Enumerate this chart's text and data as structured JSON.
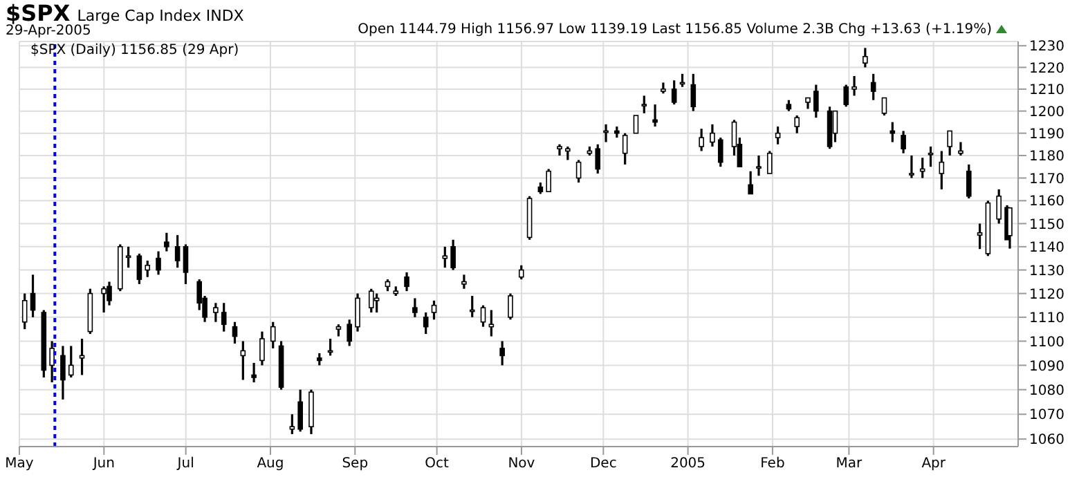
{
  "chart_data": {
    "type": "candlestick",
    "title": "$SPX",
    "subtitle": "Large Cap Index INDX",
    "annotations": [
      "29-Apr-2005",
      "Open 1144.79 High 1156.97 Low 1139.19 Last 1156.85 Volume 2.3B Chg +13.63 (+1.19%)",
      "$SPX (Daily) 1156.85 (29 Apr)"
    ],
    "color": "#000000",
    "x": [
      "2004-05-03",
      "2004-05-06",
      "2004-05-10",
      "2004-05-13",
      "2004-05-17",
      "2004-05-20",
      "2004-05-24",
      "2004-05-27",
      "2004-06-01",
      "2004-06-03",
      "2004-06-07",
      "2004-06-10",
      "2004-06-14",
      "2004-06-17",
      "2004-06-21",
      "2004-06-24",
      "2004-06-28",
      "2004-07-01",
      "2004-07-06",
      "2004-07-08",
      "2004-07-12",
      "2004-07-15",
      "2004-07-19",
      "2004-07-22",
      "2004-07-26",
      "2004-07-29",
      "2004-08-02",
      "2004-08-05",
      "2004-08-09",
      "2004-08-12",
      "2004-08-16",
      "2004-08-19",
      "2004-08-23",
      "2004-08-26",
      "2004-08-30",
      "2004-09-02",
      "2004-09-07",
      "2004-09-09",
      "2004-09-13",
      "2004-09-16",
      "2004-09-20",
      "2004-09-23",
      "2004-09-27",
      "2004-09-30",
      "2004-10-04",
      "2004-10-07",
      "2004-10-11",
      "2004-10-14",
      "2004-10-18",
      "2004-10-21",
      "2004-10-25",
      "2004-10-28",
      "2004-11-01",
      "2004-11-04",
      "2004-11-08",
      "2004-11-11",
      "2004-11-15",
      "2004-11-18",
      "2004-11-22",
      "2004-11-26",
      "2004-11-29",
      "2004-12-02",
      "2004-12-06",
      "2004-12-09",
      "2004-12-13",
      "2004-12-16",
      "2004-12-20",
      "2004-12-23",
      "2004-12-27",
      "2004-12-30",
      "2005-01-03",
      "2005-01-06",
      "2005-01-10",
      "2005-01-13",
      "2005-01-18",
      "2005-01-20",
      "2005-01-24",
      "2005-01-27",
      "2005-01-31",
      "2005-02-03",
      "2005-02-07",
      "2005-02-10",
      "2005-02-14",
      "2005-02-17",
      "2005-02-22",
      "2005-02-24",
      "2005-02-28",
      "2005-03-03",
      "2005-03-07",
      "2005-03-10",
      "2005-03-14",
      "2005-03-17",
      "2005-03-21",
      "2005-03-24",
      "2005-03-28",
      "2005-03-31",
      "2005-04-04",
      "2005-04-07",
      "2005-04-11",
      "2005-04-14",
      "2005-04-18",
      "2005-04-21",
      "2005-04-25",
      "2005-04-28",
      "2005-04-29"
    ],
    "ohlc": [
      [
        1108,
        1120,
        1105,
        1117
      ],
      [
        1120,
        1128,
        1110,
        1113
      ],
      [
        1112,
        1113,
        1085,
        1088
      ],
      [
        1090,
        1100,
        1083,
        1097
      ],
      [
        1094,
        1098,
        1076,
        1084
      ],
      [
        1086,
        1098,
        1085,
        1090
      ],
      [
        1093,
        1101,
        1086,
        1094
      ],
      [
        1104,
        1122,
        1103,
        1120
      ],
      [
        1120,
        1123,
        1112,
        1122
      ],
      [
        1123,
        1125,
        1115,
        1117
      ],
      [
        1122,
        1141,
        1121,
        1140
      ],
      [
        1136,
        1140,
        1131,
        1136
      ],
      [
        1136,
        1137,
        1124,
        1126
      ],
      [
        1130,
        1134,
        1127,
        1132
      ],
      [
        1135,
        1138,
        1128,
        1130
      ],
      [
        1142,
        1146,
        1138,
        1140
      ],
      [
        1140,
        1145,
        1131,
        1134
      ],
      [
        1140,
        1141,
        1124,
        1129
      ],
      [
        1125,
        1126,
        1113,
        1116
      ],
      [
        1118,
        1119,
        1108,
        1110
      ],
      [
        1112,
        1116,
        1108,
        1114
      ],
      [
        1112,
        1116,
        1104,
        1107
      ],
      [
        1106,
        1108,
        1099,
        1102
      ],
      [
        1094,
        1100,
        1084,
        1096
      ],
      [
        1086,
        1091,
        1083,
        1085
      ],
      [
        1092,
        1104,
        1090,
        1101
      ],
      [
        1100,
        1108,
        1097,
        1106
      ],
      [
        1098,
        1100,
        1080,
        1081
      ],
      [
        1064,
        1070,
        1062,
        1065
      ],
      [
        1075,
        1080,
        1063,
        1064
      ],
      [
        1065,
        1080,
        1062,
        1079
      ],
      [
        1093,
        1095,
        1090,
        1092
      ],
      [
        1096,
        1101,
        1094,
        1096
      ],
      [
        1105,
        1107,
        1102,
        1106
      ],
      [
        1107,
        1109,
        1098,
        1100
      ],
      [
        1106,
        1120,
        1104,
        1118
      ],
      [
        1114,
        1122,
        1112,
        1121
      ],
      [
        1117,
        1120,
        1112,
        1118
      ],
      [
        1123,
        1126,
        1121,
        1125
      ],
      [
        1120,
        1123,
        1119,
        1121
      ],
      [
        1127,
        1129,
        1121,
        1123
      ],
      [
        1114,
        1118,
        1110,
        1112
      ],
      [
        1110,
        1112,
        1103,
        1106
      ],
      [
        1112,
        1117,
        1109,
        1115
      ],
      [
        1135,
        1140,
        1131,
        1136
      ],
      [
        1140,
        1143,
        1130,
        1131
      ],
      [
        1124,
        1128,
        1122,
        1125
      ],
      [
        1113,
        1119,
        1110,
        1113
      ],
      [
        1108,
        1115,
        1106,
        1114
      ],
      [
        1106,
        1113,
        1102,
        1107
      ],
      [
        1097,
        1100,
        1090,
        1094
      ],
      [
        1110,
        1120,
        1109,
        1119
      ],
      [
        1127,
        1132,
        1126,
        1130
      ],
      [
        1144,
        1162,
        1143,
        1161
      ],
      [
        1166,
        1168,
        1163,
        1164
      ],
      [
        1164,
        1174,
        1164,
        1173
      ],
      [
        1183,
        1185,
        1180,
        1184
      ],
      [
        1182,
        1184,
        1178,
        1183
      ],
      [
        1170,
        1178,
        1168,
        1177
      ],
      [
        1181,
        1184,
        1180,
        1182
      ],
      [
        1183,
        1185,
        1172,
        1174
      ],
      [
        1191,
        1194,
        1186,
        1191
      ],
      [
        1191,
        1193,
        1188,
        1190
      ],
      [
        1181,
        1190,
        1176,
        1189
      ],
      [
        1190,
        1198,
        1190,
        1198
      ],
      [
        1203,
        1207,
        1199,
        1203
      ],
      [
        1196,
        1203,
        1193,
        1195
      ],
      [
        1209,
        1213,
        1208,
        1210
      ],
      [
        1210,
        1214,
        1203,
        1204
      ],
      [
        1213,
        1217,
        1211,
        1213
      ],
      [
        1212,
        1217,
        1200,
        1202
      ],
      [
        1184,
        1192,
        1182,
        1188
      ],
      [
        1186,
        1194,
        1184,
        1190
      ],
      [
        1187,
        1188,
        1175,
        1177
      ],
      [
        1184,
        1196,
        1180,
        1195
      ],
      [
        1185,
        1188,
        1175,
        1175
      ],
      [
        1167,
        1173,
        1163,
        1163
      ],
      [
        1175,
        1180,
        1171,
        1175
      ],
      [
        1172,
        1182,
        1172,
        1181
      ],
      [
        1188,
        1193,
        1185,
        1190
      ],
      [
        1203,
        1205,
        1200,
        1201
      ],
      [
        1193,
        1198,
        1190,
        1197
      ],
      [
        1204,
        1206,
        1201,
        1206
      ],
      [
        1209,
        1212,
        1197,
        1200
      ],
      [
        1200,
        1202,
        1183,
        1184
      ],
      [
        1190,
        1200,
        1186,
        1200
      ],
      [
        1211,
        1212,
        1202,
        1203
      ],
      [
        1210,
        1216,
        1207,
        1211
      ],
      [
        1222,
        1229,
        1220,
        1225
      ],
      [
        1213,
        1217,
        1205,
        1209
      ],
      [
        1199,
        1206,
        1198,
        1206
      ],
      [
        1191,
        1195,
        1186,
        1190
      ],
      [
        1189,
        1191,
        1181,
        1183
      ],
      [
        1172,
        1180,
        1170,
        1172
      ],
      [
        1173,
        1179,
        1170,
        1174
      ],
      [
        1181,
        1184,
        1175,
        1181
      ],
      [
        1172,
        1182,
        1165,
        1177
      ],
      [
        1184,
        1191,
        1180,
        1191
      ],
      [
        1181,
        1186,
        1180,
        1182
      ],
      [
        1173,
        1176,
        1161,
        1162
      ],
      [
        1145,
        1150,
        1139,
        1146
      ],
      [
        1137,
        1160,
        1136,
        1159
      ],
      [
        1152,
        1165,
        1150,
        1162
      ],
      [
        1157,
        1158,
        1143,
        1143
      ],
      [
        1144.79,
        1156.97,
        1139.19,
        1156.85
      ]
    ],
    "xlim": [
      "2004-05-01",
      "2005-05-02"
    ],
    "xticks": [
      {
        "value": "2004-05-01",
        "label": "May"
      },
      {
        "value": "2004-06-01",
        "label": "Jun"
      },
      {
        "value": "2004-07-01",
        "label": "Jul"
      },
      {
        "value": "2004-08-01",
        "label": "Aug"
      },
      {
        "value": "2004-09-01",
        "label": "Sep"
      },
      {
        "value": "2004-10-01",
        "label": "Oct"
      },
      {
        "value": "2004-11-01",
        "label": "Nov"
      },
      {
        "value": "2004-12-01",
        "label": "Dec"
      },
      {
        "value": "2005-01-01",
        "label": "2005"
      },
      {
        "value": "2005-02-01",
        "label": "Feb"
      },
      {
        "value": "2005-03-01",
        "label": "Mar"
      },
      {
        "value": "2005-04-01",
        "label": "Apr"
      }
    ],
    "ylim": [
      1057,
      1232
    ],
    "yticks": [
      1060,
      1070,
      1080,
      1090,
      1100,
      1110,
      1120,
      1130,
      1140,
      1150,
      1160,
      1170,
      1180,
      1190,
      1200,
      1210,
      1220,
      1230
    ],
    "log": true,
    "grid": true,
    "ref_lines": [
      {
        "axis": "x",
        "value": "2004-05-14",
        "color": "#0000ff",
        "line_style": "dashed"
      }
    ]
  }
}
